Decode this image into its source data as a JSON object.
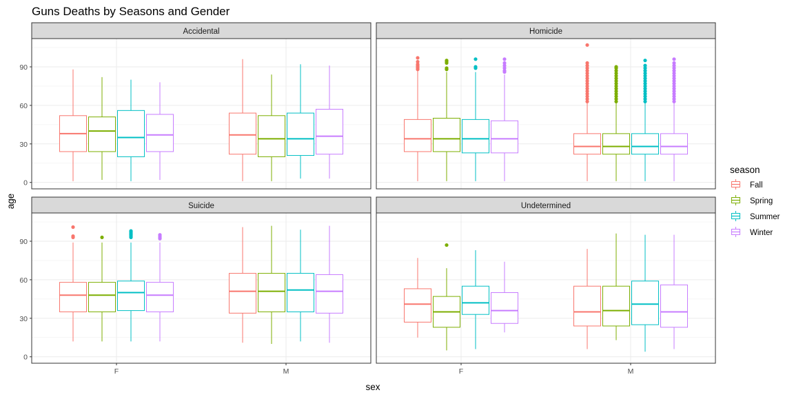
{
  "chart_data": {
    "type": "boxplot",
    "title": "Guns Deaths by Seasons and Gender",
    "xlabel": "sex",
    "ylabel": "age",
    "categories": [
      "F",
      "M"
    ],
    "ylim": [
      -5,
      112
    ],
    "yticks": [
      0,
      30,
      60,
      90
    ],
    "grid": true,
    "legend": {
      "title": "season",
      "placement": "right",
      "entries": [
        "Fall",
        "Spring",
        "Summer",
        "Winter"
      ]
    },
    "series_colors": {
      "Fall": "#F8766D",
      "Spring": "#7CAE00",
      "Summer": "#00BFC4",
      "Winter": "#C77CFF"
    },
    "facets": [
      {
        "label": "Accidental",
        "groups": {
          "F": [
            {
              "season": "Fall",
              "min": 1,
              "q1": 24,
              "median": 38,
              "q3": 52,
              "max": 88,
              "outliers": []
            },
            {
              "season": "Spring",
              "min": 2,
              "q1": 24,
              "median": 40,
              "q3": 51,
              "max": 82,
              "outliers": []
            },
            {
              "season": "Summer",
              "min": 1,
              "q1": 20,
              "median": 35,
              "q3": 56,
              "max": 80,
              "outliers": []
            },
            {
              "season": "Winter",
              "min": 2,
              "q1": 24,
              "median": 37,
              "q3": 53,
              "max": 78,
              "outliers": []
            }
          ],
          "M": [
            {
              "season": "Fall",
              "min": 1,
              "q1": 22,
              "median": 37,
              "q3": 54,
              "max": 96,
              "outliers": []
            },
            {
              "season": "Spring",
              "min": 1,
              "q1": 20,
              "median": 34,
              "q3": 52,
              "max": 84,
              "outliers": []
            },
            {
              "season": "Summer",
              "min": 3,
              "q1": 21,
              "median": 34,
              "q3": 54,
              "max": 92,
              "outliers": []
            },
            {
              "season": "Winter",
              "min": 3,
              "q1": 22,
              "median": 36,
              "q3": 57,
              "max": 91,
              "outliers": []
            }
          ]
        }
      },
      {
        "label": "Homicide",
        "groups": {
          "F": [
            {
              "season": "Fall",
              "min": 1,
              "q1": 24,
              "median": 34,
              "q3": 49,
              "max": 87,
              "outliers": [
                88,
                89,
                90,
                91,
                92,
                94,
                97
              ]
            },
            {
              "season": "Spring",
              "min": 1,
              "q1": 24,
              "median": 34,
              "q3": 50,
              "max": 86,
              "outliers": [
                88,
                89,
                93,
                94,
                95
              ]
            },
            {
              "season": "Summer",
              "min": 1,
              "q1": 23,
              "median": 34,
              "q3": 49,
              "max": 86,
              "outliers": [
                89,
                90,
                96
              ]
            },
            {
              "season": "Winter",
              "min": 1,
              "q1": 23,
              "median": 34,
              "q3": 48,
              "max": 84,
              "outliers": [
                86,
                87,
                89,
                91,
                93,
                96
              ]
            }
          ],
          "M": [
            {
              "season": "Fall",
              "min": 1,
              "q1": 22,
              "median": 28,
              "q3": 38,
              "max": 62,
              "outliers": [
                63,
                65,
                67,
                69,
                71,
                73,
                75,
                77,
                79,
                81,
                83,
                85,
                87,
                89,
                91,
                93,
                107
              ]
            },
            {
              "season": "Spring",
              "min": 1,
              "q1": 22,
              "median": 28,
              "q3": 38,
              "max": 62,
              "outliers": [
                63,
                65,
                67,
                69,
                71,
                73,
                75,
                77,
                79,
                81,
                83,
                85,
                87,
                89,
                90
              ]
            },
            {
              "season": "Summer",
              "min": 1,
              "q1": 22,
              "median": 28,
              "q3": 38,
              "max": 62,
              "outliers": [
                63,
                65,
                67,
                69,
                71,
                73,
                75,
                77,
                79,
                81,
                83,
                85,
                87,
                89,
                91,
                95
              ]
            },
            {
              "season": "Winter",
              "min": 1,
              "q1": 22,
              "median": 28,
              "q3": 38,
              "max": 62,
              "outliers": [
                63,
                65,
                67,
                69,
                71,
                73,
                75,
                77,
                79,
                81,
                83,
                85,
                87,
                89,
                91,
                93,
                96
              ]
            }
          ]
        }
      },
      {
        "label": "Suicide",
        "groups": {
          "F": [
            {
              "season": "Fall",
              "min": 12,
              "q1": 35,
              "median": 48,
              "q3": 58,
              "max": 89,
              "outliers": [
                93,
                94,
                101
              ]
            },
            {
              "season": "Spring",
              "min": 12,
              "q1": 35,
              "median": 48,
              "q3": 58,
              "max": 89,
              "outliers": [
                93
              ]
            },
            {
              "season": "Summer",
              "min": 12,
              "q1": 36,
              "median": 50,
              "q3": 59,
              "max": 89,
              "outliers": [
                93,
                94,
                95,
                96,
                97,
                98
              ]
            },
            {
              "season": "Winter",
              "min": 12,
              "q1": 35,
              "median": 48,
              "q3": 58,
              "max": 89,
              "outliers": [
                92,
                93,
                94,
                95
              ]
            }
          ],
          "M": [
            {
              "season": "Fall",
              "min": 11,
              "q1": 34,
              "median": 51,
              "q3": 65,
              "max": 101,
              "outliers": []
            },
            {
              "season": "Spring",
              "min": 10,
              "q1": 35,
              "median": 51,
              "q3": 65,
              "max": 102,
              "outliers": []
            },
            {
              "season": "Summer",
              "min": 12,
              "q1": 35,
              "median": 52,
              "q3": 65,
              "max": 99,
              "outliers": []
            },
            {
              "season": "Winter",
              "min": 11,
              "q1": 34,
              "median": 51,
              "q3": 64,
              "max": 102,
              "outliers": []
            }
          ]
        }
      },
      {
        "label": "Undetermined",
        "groups": {
          "F": [
            {
              "season": "Fall",
              "min": 15,
              "q1": 27,
              "median": 41,
              "q3": 53,
              "max": 77,
              "outliers": []
            },
            {
              "season": "Spring",
              "min": 5,
              "q1": 23,
              "median": 35,
              "q3": 47,
              "max": 69,
              "outliers": [
                87
              ]
            },
            {
              "season": "Summer",
              "min": 6,
              "q1": 33,
              "median": 42,
              "q3": 55,
              "max": 83,
              "outliers": []
            },
            {
              "season": "Winter",
              "min": 19,
              "q1": 26,
              "median": 36,
              "q3": 50,
              "max": 74,
              "outliers": []
            }
          ],
          "M": [
            {
              "season": "Fall",
              "min": 6,
              "q1": 24,
              "median": 35,
              "q3": 55,
              "max": 84,
              "outliers": []
            },
            {
              "season": "Spring",
              "min": 13,
              "q1": 24,
              "median": 36,
              "q3": 55,
              "max": 96,
              "outliers": []
            },
            {
              "season": "Summer",
              "min": 4,
              "q1": 25,
              "median": 41,
              "q3": 59,
              "max": 95,
              "outliers": []
            },
            {
              "season": "Winter",
              "min": 6,
              "q1": 23,
              "median": 35,
              "q3": 56,
              "max": 95,
              "outliers": []
            }
          ]
        }
      }
    ]
  }
}
